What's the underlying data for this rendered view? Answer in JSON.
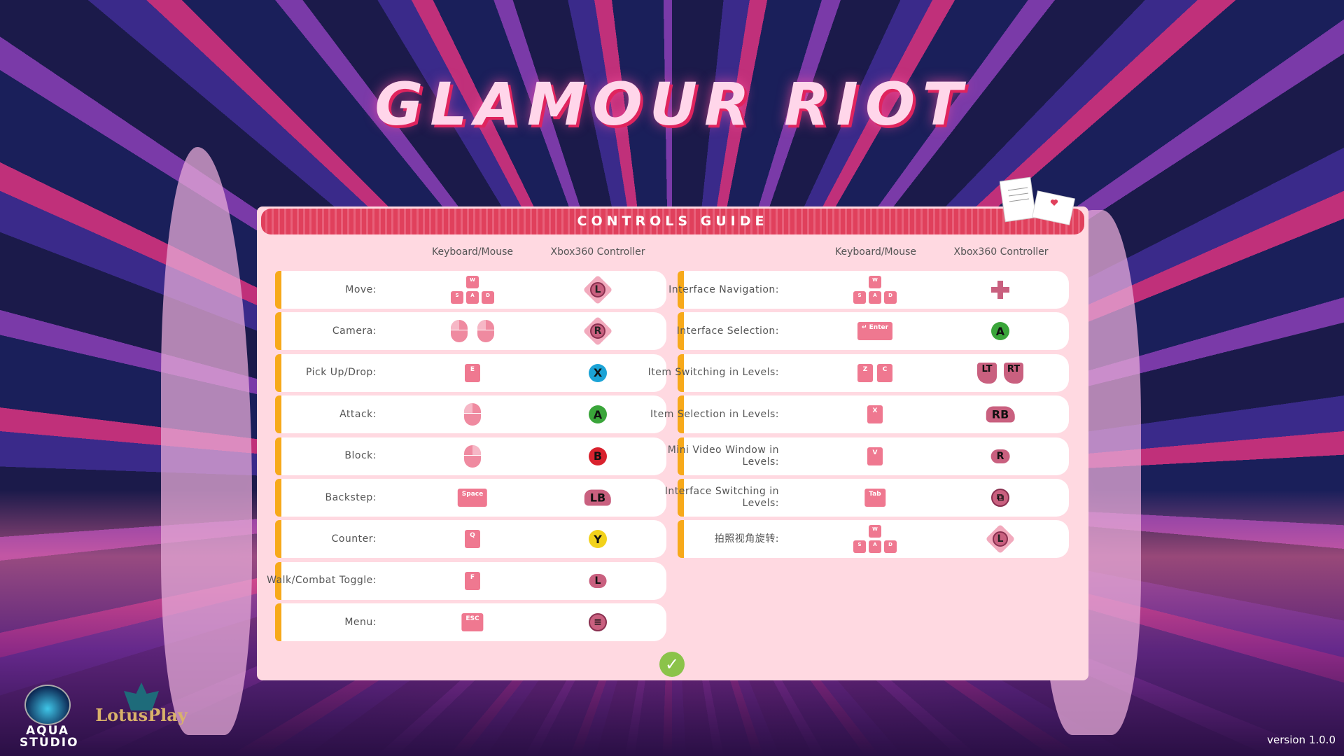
{
  "game_title": "GLAMOUR RIOT",
  "panel_title": "CONTROLS GUIDE",
  "columns": {
    "keyboard": "Keyboard/Mouse",
    "controller": "Xbox360 Controller"
  },
  "colors": {
    "accent_bar": "#f7a91a",
    "header": "#e0405c",
    "key": "#ef7890",
    "panel": "#ffd9e1"
  },
  "left_controls": [
    {
      "action": "Move:",
      "keyboard": {
        "type": "wasd",
        "keys": [
          "W",
          "S",
          "A",
          "D"
        ]
      },
      "controller": {
        "type": "stick",
        "label": "L"
      }
    },
    {
      "action": "Camera:",
      "keyboard": {
        "type": "mouse-move"
      },
      "controller": {
        "type": "stick",
        "label": "R"
      }
    },
    {
      "action": "Pick Up/Drop:",
      "keyboard": {
        "type": "key",
        "keys": [
          "E"
        ]
      },
      "controller": {
        "type": "face",
        "label": "X",
        "color": "#1ba3d6"
      }
    },
    {
      "action": "Attack:",
      "keyboard": {
        "type": "mouse-left"
      },
      "controller": {
        "type": "face",
        "label": "A",
        "color": "#3aa53a"
      }
    },
    {
      "action": "Block:",
      "keyboard": {
        "type": "mouse-right"
      },
      "controller": {
        "type": "face",
        "label": "B",
        "color": "#d9222e"
      }
    },
    {
      "action": "Backstep:",
      "keyboard": {
        "type": "key",
        "keys": [
          "Space"
        ]
      },
      "controller": {
        "type": "bumper",
        "label": "LB"
      }
    },
    {
      "action": "Counter:",
      "keyboard": {
        "type": "key",
        "keys": [
          "Q"
        ]
      },
      "controller": {
        "type": "face",
        "label": "Y",
        "color": "#f2d21b"
      }
    },
    {
      "action": "Walk/Combat Toggle:",
      "keyboard": {
        "type": "key",
        "keys": [
          "F"
        ]
      },
      "controller": {
        "type": "stick-click",
        "label": "L"
      }
    },
    {
      "action": "Menu:",
      "keyboard": {
        "type": "key",
        "keys": [
          "ESC"
        ]
      },
      "controller": {
        "type": "menu",
        "label": "≡"
      }
    }
  ],
  "right_controls": [
    {
      "action": "Interface Navigation:",
      "keyboard": {
        "type": "wasd",
        "keys": [
          "W",
          "S",
          "A",
          "D"
        ]
      },
      "controller": {
        "type": "dpad"
      }
    },
    {
      "action": "Interface Selection:",
      "keyboard": {
        "type": "key",
        "keys": [
          "↵ Enter"
        ]
      },
      "controller": {
        "type": "face",
        "label": "A",
        "color": "#3aa53a"
      }
    },
    {
      "action": "Item Switching in Levels:",
      "keyboard": {
        "type": "key",
        "keys": [
          "Z",
          "C"
        ]
      },
      "controller": {
        "type": "triggers",
        "labels": [
          "LT",
          "RT"
        ]
      }
    },
    {
      "action": "Item Selection in Levels:",
      "keyboard": {
        "type": "key",
        "keys": [
          "X"
        ]
      },
      "controller": {
        "type": "bumper",
        "label": "RB"
      }
    },
    {
      "action": "Mini Video Window in Levels:",
      "keyboard": {
        "type": "key",
        "keys": [
          "V"
        ]
      },
      "controller": {
        "type": "stick-click",
        "label": "R"
      }
    },
    {
      "action": "Interface Switching in Levels:",
      "keyboard": {
        "type": "key",
        "keys": [
          "Tab"
        ]
      },
      "controller": {
        "type": "view",
        "label": "⧉"
      }
    },
    {
      "action": "拍照视角旋转:",
      "keyboard": {
        "type": "wasd",
        "keys": [
          "W",
          "S",
          "A",
          "D"
        ]
      },
      "controller": {
        "type": "stick",
        "label": "L"
      }
    }
  ],
  "confirm_icon": "check-icon",
  "logos": {
    "studio": "AQUA STUDIO",
    "publisher": "LotusPlay"
  },
  "version": "version 1.0.0"
}
